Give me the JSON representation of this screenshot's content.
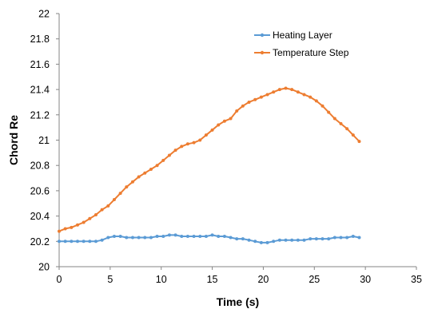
{
  "chart_data": {
    "type": "line",
    "title": "",
    "xlabel": "Time (s)",
    "ylabel": "Chord Re",
    "xlim": [
      0,
      35
    ],
    "ylim": [
      20,
      22
    ],
    "x_ticks": [
      0,
      5,
      10,
      15,
      20,
      25,
      30,
      35
    ],
    "x_tick_labels": [
      "0",
      "5",
      "10",
      "15",
      "20",
      "25",
      "30",
      "35"
    ],
    "y_ticks": [
      20,
      20.2,
      20.4,
      20.6,
      20.8,
      21,
      21.2,
      21.4,
      21.6,
      21.8,
      22
    ],
    "y_tick_labels": [
      "20",
      "20.2",
      "20.4",
      "20.6",
      "20.8",
      "21",
      "21.2",
      "21.4",
      "21.6",
      "21.8",
      "22"
    ],
    "grid": false,
    "legend_position": "top-right",
    "series": [
      {
        "name": "Heating Layer",
        "color": "#5b9bd5",
        "x": [
          0,
          0.6,
          1.2,
          1.8,
          2.4,
          3,
          3.6,
          4.2,
          4.8,
          5.4,
          6,
          6.6,
          7.2,
          7.8,
          8.4,
          9,
          9.6,
          10.2,
          10.8,
          11.4,
          12,
          12.6,
          13.2,
          13.8,
          14.4,
          15,
          15.6,
          16.2,
          16.8,
          17.4,
          18,
          18.6,
          19.2,
          19.8,
          20.4,
          21,
          21.6,
          22.2,
          22.8,
          23.4,
          24,
          24.6,
          25.2,
          25.8,
          26.4,
          27,
          27.6,
          28.2,
          28.8,
          29.4
        ],
        "y": [
          20.2,
          20.2,
          20.2,
          20.2,
          20.2,
          20.2,
          20.2,
          20.21,
          20.23,
          20.24,
          20.24,
          20.23,
          20.23,
          20.23,
          20.23,
          20.23,
          20.24,
          20.24,
          20.25,
          20.25,
          20.24,
          20.24,
          20.24,
          20.24,
          20.24,
          20.25,
          20.24,
          20.24,
          20.23,
          20.22,
          20.22,
          20.21,
          20.2,
          20.19,
          20.19,
          20.2,
          20.21,
          20.21,
          20.21,
          20.21,
          20.21,
          20.22,
          20.22,
          20.22,
          20.22,
          20.23,
          20.23,
          20.23,
          20.24,
          20.23
        ]
      },
      {
        "name": "Temperature Step",
        "color": "#ed7d31",
        "x": [
          0,
          0.6,
          1.2,
          1.8,
          2.4,
          3,
          3.6,
          4.2,
          4.8,
          5.4,
          6,
          6.6,
          7.2,
          7.8,
          8.4,
          9,
          9.6,
          10.2,
          10.8,
          11.4,
          12,
          12.6,
          13.2,
          13.8,
          14.4,
          15,
          15.6,
          16.2,
          16.8,
          17.4,
          18,
          18.6,
          19.2,
          19.8,
          20.4,
          21,
          21.6,
          22.2,
          22.8,
          23.4,
          24,
          24.6,
          25.2,
          25.8,
          26.4,
          27,
          27.6,
          28.2,
          28.8,
          29.4
        ],
        "y": [
          20.28,
          20.3,
          20.31,
          20.33,
          20.35,
          20.38,
          20.41,
          20.45,
          20.48,
          20.53,
          20.58,
          20.63,
          20.67,
          20.71,
          20.74,
          20.77,
          20.8,
          20.84,
          20.88,
          20.92,
          20.95,
          20.97,
          20.98,
          21.0,
          21.04,
          21.08,
          21.12,
          21.15,
          21.17,
          21.23,
          21.27,
          21.3,
          21.32,
          21.34,
          21.36,
          21.38,
          21.4,
          21.41,
          21.4,
          21.38,
          21.36,
          21.34,
          21.31,
          21.27,
          21.22,
          21.17,
          21.13,
          21.09,
          21.04,
          20.99
        ]
      }
    ]
  }
}
